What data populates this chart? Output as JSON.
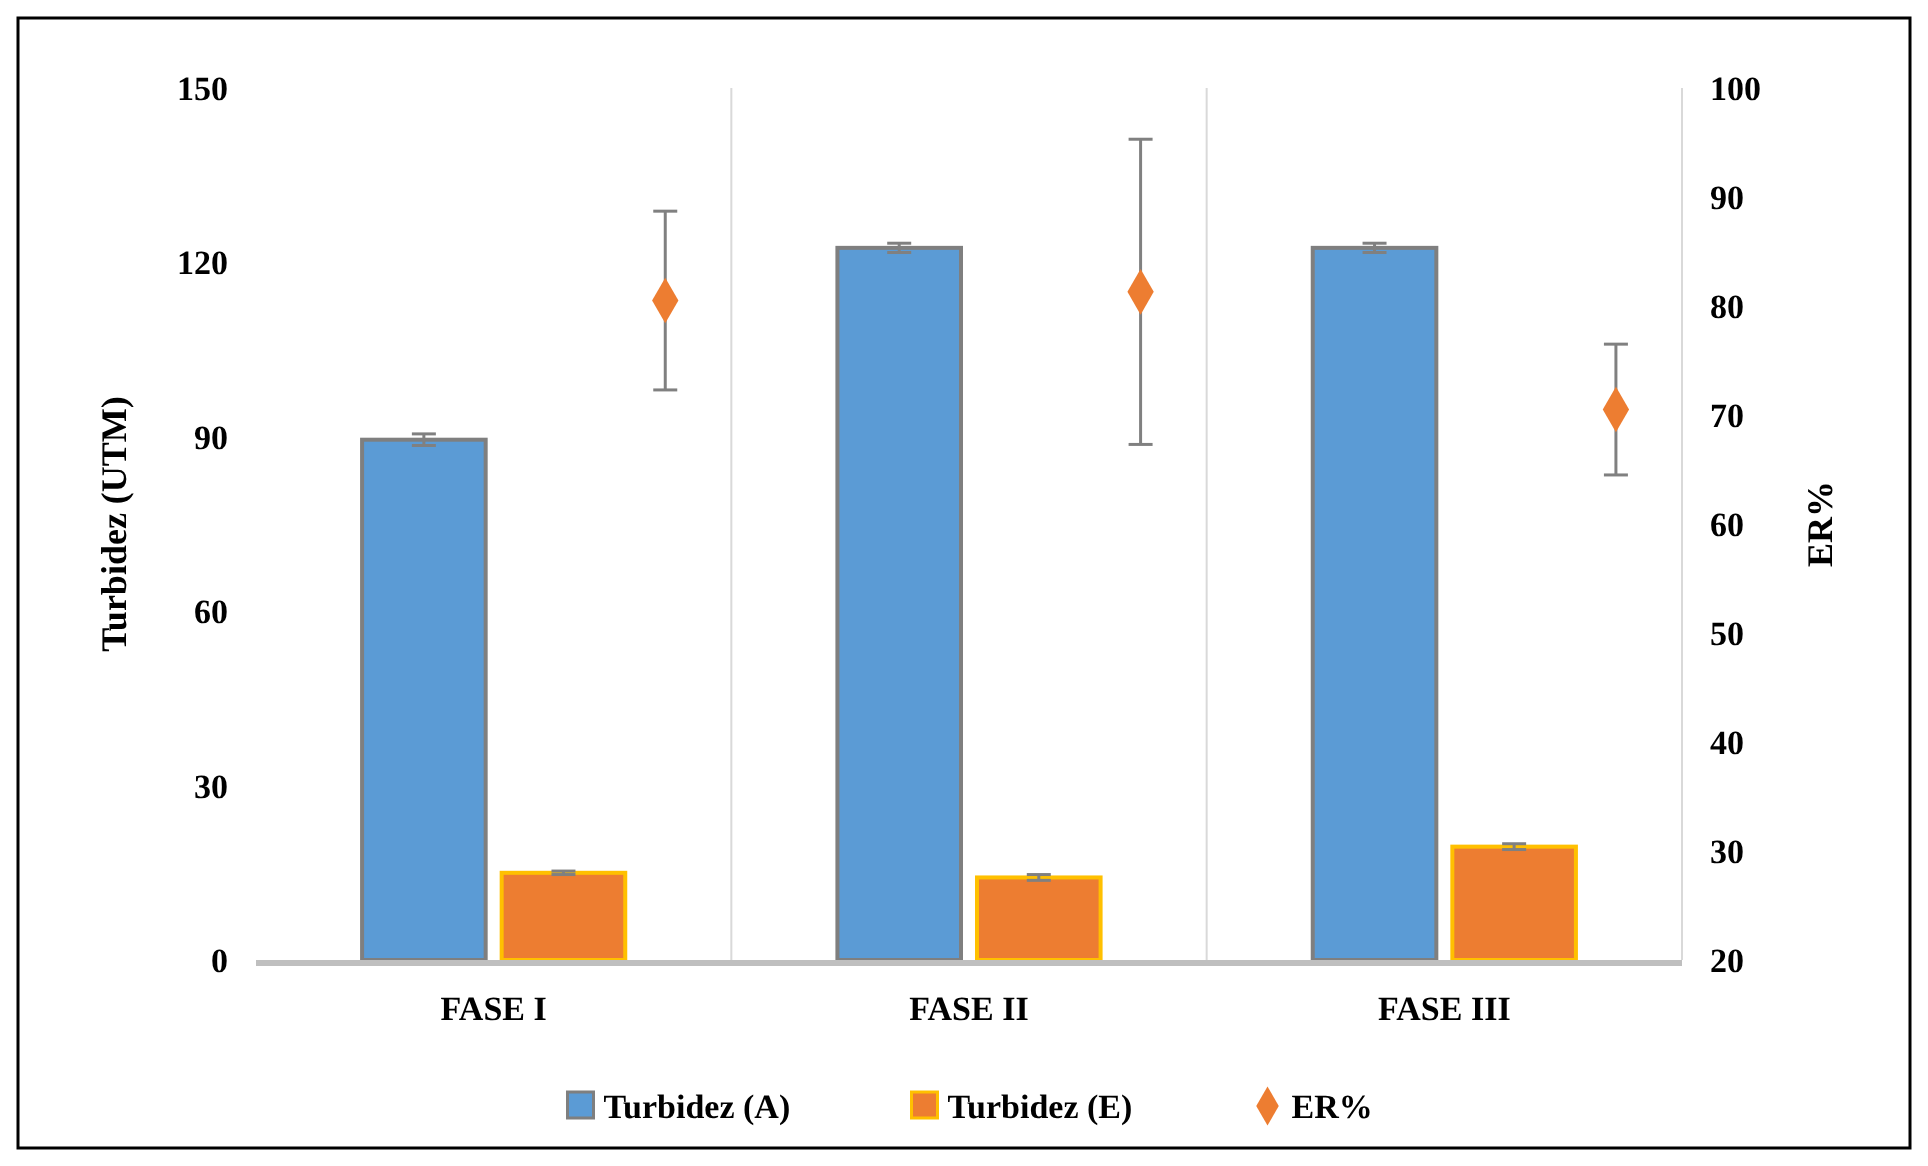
{
  "chart_data": {
    "type": "bar",
    "ylabel": "Turbidez (UTM)",
    "y2label": "ER%",
    "categories": [
      "FASE I",
      "FASE II",
      "FASE III"
    ],
    "series": [
      {
        "name": "Turbidez (A)",
        "color": "#5b9bd5",
        "values": [
          89.5,
          122.5,
          122.5
        ],
        "errors": [
          1,
          0.8,
          0.8
        ]
      },
      {
        "name": "Turbidez (E)",
        "color": "#ed7d31",
        "values": [
          15,
          14.2,
          19.5
        ],
        "errors": [
          0.3,
          0.5,
          0.5
        ]
      },
      {
        "name": "ER%",
        "type": "scatter",
        "axis": "y2",
        "marker": "diamond",
        "color": "#ed7d31",
        "values": [
          80.5,
          81.3,
          70.5
        ],
        "errors": [
          8.2,
          14,
          6
        ]
      }
    ],
    "ylim": [
      0,
      150
    ],
    "yticks": [
      0,
      30,
      60,
      90,
      120,
      150
    ],
    "y2lim": [
      20,
      100
    ],
    "y2ticks": [
      20,
      30,
      40,
      50,
      60,
      70,
      80,
      90,
      100
    ],
    "grid": "x",
    "legend": "bottom"
  }
}
